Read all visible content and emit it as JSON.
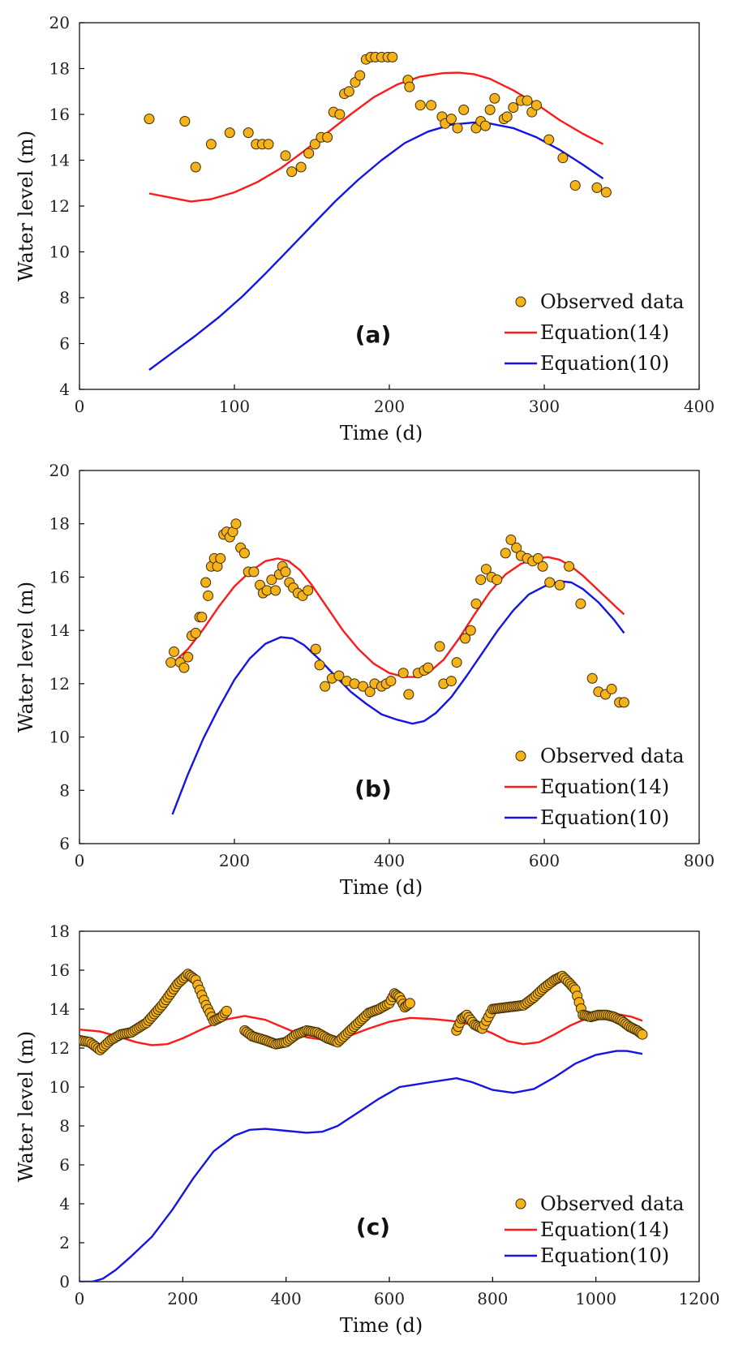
{
  "colors": {
    "observed_fill": "#F5B21A",
    "observed_edge": "#3a2a00",
    "eq14": "#FF1A1A",
    "eq10": "#1414E6",
    "axis": "#000000"
  },
  "chart_data": [
    {
      "type": "line",
      "panel_label": "(a)",
      "xlabel": "Time (d)",
      "ylabel": "Water level (m)",
      "xlim": [
        0,
        400
      ],
      "ylim": [
        4,
        20
      ],
      "xticks": [
        0,
        100,
        200,
        300,
        400
      ],
      "yticks": [
        4,
        6,
        8,
        10,
        12,
        14,
        16,
        18,
        20
      ],
      "xtick_labels": [
        "0",
        "100",
        "200",
        "300",
        "400"
      ],
      "ytick_labels": [
        "4",
        "6",
        "8",
        "10",
        "12",
        "14",
        "16",
        "18",
        "20"
      ],
      "legend": {
        "position": "bottom-right",
        "entries": [
          "Observed data",
          "Equation(14)",
          "Equation(10)"
        ]
      },
      "series": [
        {
          "name": "Observed data",
          "kind": "scatter",
          "x": [
            45,
            68,
            75,
            85,
            97,
            109,
            114,
            118,
            122,
            133,
            137,
            143,
            148,
            152,
            156,
            160,
            164,
            168,
            171,
            174,
            178,
            181,
            185,
            188,
            191,
            195,
            199,
            202,
            212,
            213,
            220,
            227,
            234,
            236,
            240,
            244,
            248,
            256,
            259,
            262,
            265,
            268,
            274,
            276,
            280,
            285,
            289,
            292,
            295,
            303,
            312,
            320,
            334,
            340
          ],
          "y": [
            15.8,
            15.7,
            13.7,
            14.7,
            15.2,
            15.2,
            14.7,
            14.7,
            14.7,
            14.2,
            13.5,
            13.7,
            14.3,
            14.7,
            15.0,
            15.0,
            16.1,
            16.0,
            16.9,
            17.0,
            17.4,
            17.7,
            18.4,
            18.5,
            18.5,
            18.5,
            18.5,
            18.5,
            17.5,
            17.2,
            16.4,
            16.4,
            15.9,
            15.6,
            15.8,
            15.4,
            16.2,
            15.4,
            15.7,
            15.5,
            16.2,
            16.7,
            15.8,
            15.9,
            16.3,
            16.6,
            16.6,
            16.1,
            16.4,
            14.9,
            14.1,
            12.9,
            12.8,
            12.6
          ]
        },
        {
          "name": "Equation(14)",
          "kind": "line",
          "x": [
            45,
            60,
            72,
            85,
            100,
            115,
            130,
            145,
            160,
            175,
            190,
            205,
            220,
            235,
            245,
            255,
            265,
            280,
            295,
            310,
            325,
            338
          ],
          "y": [
            12.55,
            12.35,
            12.2,
            12.3,
            12.6,
            13.05,
            13.65,
            14.4,
            15.2,
            16.0,
            16.75,
            17.3,
            17.65,
            17.8,
            17.82,
            17.75,
            17.55,
            17.05,
            16.45,
            15.75,
            15.15,
            14.7
          ]
        },
        {
          "name": "Equation(10)",
          "kind": "line",
          "x": [
            45,
            60,
            75,
            90,
            105,
            120,
            135,
            150,
            165,
            180,
            195,
            210,
            225,
            240,
            255,
            265,
            280,
            295,
            310,
            325,
            338
          ],
          "y": [
            4.85,
            5.6,
            6.35,
            7.15,
            8.05,
            9.05,
            10.1,
            11.15,
            12.2,
            13.15,
            14.0,
            14.75,
            15.25,
            15.55,
            15.65,
            15.6,
            15.4,
            15.0,
            14.45,
            13.8,
            13.2
          ]
        }
      ]
    },
    {
      "type": "line",
      "panel_label": "(b)",
      "xlabel": "Time (d)",
      "ylabel": "Water level (m)",
      "xlim": [
        0,
        800
      ],
      "ylim": [
        6,
        20
      ],
      "xticks": [
        0,
        200,
        400,
        600,
        800
      ],
      "yticks": [
        6,
        8,
        10,
        12,
        14,
        16,
        18,
        20
      ],
      "xtick_labels": [
        "0",
        "200",
        "400",
        "600",
        "800"
      ],
      "ytick_labels": [
        "6",
        "8",
        "10",
        "12",
        "14",
        "16",
        "18",
        "20"
      ],
      "legend": {
        "position": "bottom-right",
        "entries": [
          "Observed data",
          "Equation(14)",
          "Equation(10)"
        ]
      },
      "series": [
        {
          "name": "Observed data",
          "kind": "scatter",
          "x": [
            118,
            122,
            130,
            135,
            140,
            145,
            150,
            155,
            158,
            163,
            166,
            170,
            174,
            178,
            182,
            186,
            190,
            194,
            198,
            202,
            208,
            213,
            218,
            225,
            233,
            237,
            242,
            248,
            253,
            258,
            262,
            266,
            271,
            276,
            282,
            288,
            295,
            305,
            310,
            317,
            326,
            335,
            345,
            355,
            366,
            375,
            381,
            390,
            396,
            402,
            418,
            425,
            437,
            445,
            450,
            465,
            470,
            480,
            487,
            498,
            505,
            512,
            518,
            525,
            532,
            539,
            550,
            557,
            564,
            570,
            578,
            585,
            592,
            598,
            607,
            620,
            632,
            647,
            662,
            670,
            679,
            687,
            697,
            703
          ],
          "y": [
            12.8,
            13.2,
            12.8,
            12.6,
            13.0,
            13.8,
            13.9,
            14.5,
            14.5,
            15.8,
            15.3,
            16.4,
            16.7,
            16.4,
            16.7,
            17.6,
            17.7,
            17.5,
            17.7,
            18.0,
            17.1,
            16.9,
            16.2,
            16.2,
            15.7,
            15.4,
            15.5,
            15.9,
            15.5,
            16.1,
            16.4,
            16.2,
            15.8,
            15.6,
            15.4,
            15.3,
            15.5,
            13.3,
            12.7,
            11.9,
            12.2,
            12.3,
            12.1,
            12.0,
            11.9,
            11.7,
            12.0,
            11.9,
            12.0,
            12.1,
            12.4,
            11.6,
            12.4,
            12.5,
            12.6,
            13.4,
            12.0,
            12.1,
            12.8,
            13.7,
            14.0,
            15.0,
            15.9,
            16.3,
            16.0,
            15.9,
            16.9,
            17.4,
            17.1,
            16.8,
            16.7,
            16.6,
            16.7,
            16.4,
            15.8,
            15.7,
            16.4,
            15.0,
            12.2,
            11.7,
            11.6,
            11.8,
            11.3,
            11.3
          ]
        },
        {
          "name": "Equation(14)",
          "kind": "line",
          "x": [
            118,
            140,
            160,
            180,
            200,
            220,
            240,
            256,
            270,
            285,
            300,
            320,
            340,
            360,
            380,
            400,
            420,
            435,
            450,
            470,
            490,
            510,
            530,
            550,
            570,
            590,
            605,
            620,
            635,
            650,
            670,
            690,
            703
          ],
          "y": [
            12.7,
            13.3,
            14.05,
            14.9,
            15.65,
            16.2,
            16.6,
            16.7,
            16.6,
            16.25,
            15.7,
            14.85,
            14.0,
            13.3,
            12.75,
            12.4,
            12.25,
            12.25,
            12.4,
            12.9,
            13.7,
            14.6,
            15.45,
            16.1,
            16.5,
            16.7,
            16.75,
            16.65,
            16.4,
            16.05,
            15.5,
            14.95,
            14.6
          ]
        },
        {
          "name": "Equation(10)",
          "kind": "line",
          "x": [
            120,
            140,
            160,
            180,
            200,
            220,
            240,
            260,
            275,
            290,
            310,
            330,
            350,
            370,
            390,
            410,
            430,
            445,
            460,
            480,
            500,
            520,
            540,
            560,
            580,
            600,
            620,
            635,
            650,
            670,
            690,
            703
          ],
          "y": [
            7.1,
            8.6,
            9.95,
            11.1,
            12.15,
            12.95,
            13.5,
            13.75,
            13.7,
            13.45,
            12.9,
            12.3,
            11.7,
            11.25,
            10.85,
            10.65,
            10.5,
            10.6,
            10.9,
            11.5,
            12.3,
            13.15,
            14.0,
            14.75,
            15.35,
            15.65,
            15.85,
            15.8,
            15.55,
            15.05,
            14.4,
            13.9
          ]
        }
      ]
    },
    {
      "type": "line",
      "panel_label": "(c)",
      "xlabel": "Time (d)",
      "ylabel": "Water level (m)",
      "xlim": [
        0,
        1200
      ],
      "ylim": [
        0,
        18
      ],
      "xticks": [
        0,
        200,
        400,
        600,
        800,
        1000,
        1200
      ],
      "yticks": [
        0,
        2,
        4,
        6,
        8,
        10,
        12,
        14,
        16,
        18
      ],
      "xtick_labels": [
        "0",
        "200",
        "400",
        "600",
        "800",
        "1000",
        "1200"
      ],
      "ytick_labels": [
        "0",
        "2",
        "4",
        "6",
        "8",
        "10",
        "12",
        "14",
        "16",
        "18"
      ],
      "legend": {
        "position": "bottom-right",
        "entries": [
          "Observed data",
          "Equation(14)",
          "Equation(10)"
        ]
      },
      "series": [
        {
          "name": "Observed data",
          "kind": "scatter",
          "segments": [
            {
              "x": [
                0,
                20,
                40,
                60,
                80,
                100,
                130,
                160,
                190,
                210,
                225,
                245,
                260,
                275,
                285
              ],
              "y": [
                12.4,
                12.3,
                11.9,
                12.4,
                12.7,
                12.8,
                13.3,
                14.2,
                15.3,
                15.8,
                15.5,
                14.2,
                13.4,
                13.6,
                13.9
              ]
            },
            {
              "x": [
                320,
                335,
                360,
                380,
                400,
                420,
                440,
                460,
                480,
                500,
                520,
                540,
                560,
                580,
                600,
                610,
                620,
                630,
                640
              ],
              "y": [
                12.9,
                12.6,
                12.4,
                12.2,
                12.3,
                12.7,
                12.9,
                12.8,
                12.5,
                12.3,
                12.8,
                13.3,
                13.8,
                14.0,
                14.3,
                14.8,
                14.6,
                14.1,
                14.3
              ]
            },
            {
              "x": [
                730,
                740,
                750,
                765,
                780,
                800,
                830,
                860,
                880,
                900,
                920,
                935,
                950,
                960,
                975,
                990,
                1005,
                1020,
                1035,
                1050,
                1065,
                1080,
                1090
              ],
              "y": [
                12.9,
                13.5,
                13.7,
                13.2,
                13.0,
                14.0,
                14.1,
                14.2,
                14.6,
                15.1,
                15.5,
                15.7,
                15.3,
                15.0,
                13.7,
                13.6,
                13.7,
                13.7,
                13.6,
                13.4,
                13.1,
                12.9,
                12.7
              ]
            }
          ]
        },
        {
          "name": "Equation(14)",
          "kind": "line",
          "x": [
            0,
            40,
            80,
            110,
            140,
            170,
            200,
            240,
            280,
            320,
            360,
            400,
            440,
            480,
            520,
            560,
            600,
            640,
            680,
            720,
            760,
            800,
            830,
            860,
            890,
            920,
            950,
            980,
            1010,
            1040,
            1070,
            1090
          ],
          "y": [
            12.95,
            12.85,
            12.55,
            12.3,
            12.15,
            12.2,
            12.5,
            13.0,
            13.45,
            13.65,
            13.45,
            13.0,
            12.55,
            12.4,
            12.6,
            13.0,
            13.35,
            13.55,
            13.5,
            13.4,
            13.2,
            12.75,
            12.35,
            12.2,
            12.3,
            12.7,
            13.15,
            13.5,
            13.7,
            13.75,
            13.6,
            13.4
          ]
        },
        {
          "name": "Equation(10)",
          "kind": "line",
          "x": [
            0,
            25,
            45,
            70,
            100,
            140,
            180,
            220,
            260,
            300,
            330,
            360,
            400,
            440,
            470,
            500,
            540,
            580,
            620,
            645,
            680,
            730,
            760,
            800,
            840,
            880,
            920,
            960,
            1000,
            1040,
            1060,
            1090
          ],
          "y": [
            0,
            0.0,
            0.15,
            0.6,
            1.3,
            2.3,
            3.7,
            5.3,
            6.7,
            7.5,
            7.8,
            7.85,
            7.75,
            7.65,
            7.7,
            8.0,
            8.7,
            9.4,
            10.0,
            10.1,
            10.25,
            10.45,
            10.25,
            9.85,
            9.7,
            9.9,
            10.5,
            11.2,
            11.65,
            11.85,
            11.85,
            11.7
          ]
        }
      ]
    }
  ]
}
